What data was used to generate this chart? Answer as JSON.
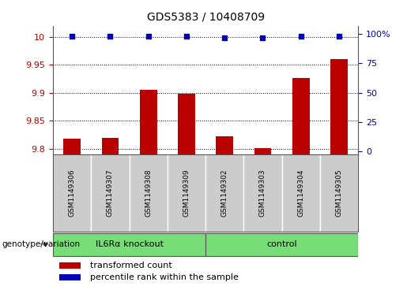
{
  "title": "GDS5383 / 10408709",
  "samples": [
    "GSM1149306",
    "GSM1149307",
    "GSM1149308",
    "GSM1149309",
    "GSM1149302",
    "GSM1149303",
    "GSM1149304",
    "GSM1149305"
  ],
  "transformed_counts": [
    9.818,
    9.82,
    9.905,
    9.898,
    9.822,
    9.801,
    9.926,
    9.96
  ],
  "percentile_ranks": [
    98,
    98,
    98,
    98,
    97,
    97,
    98,
    98
  ],
  "ylim_left": [
    9.79,
    10.02
  ],
  "ylim_right": [
    -2.5,
    107
  ],
  "yticks_left": [
    9.8,
    9.85,
    9.9,
    9.95,
    10.0
  ],
  "yticks_right": [
    0,
    25,
    50,
    75,
    100
  ],
  "groups": [
    {
      "label": "IL6Rα knockout",
      "indices": [
        0,
        1,
        2,
        3
      ],
      "color": "#77DD77"
    },
    {
      "label": "control",
      "indices": [
        4,
        5,
        6,
        7
      ],
      "color": "#77DD77"
    }
  ],
  "bar_color": "#BB0000",
  "dot_color": "#0000BB",
  "bar_width": 0.45,
  "background_color": "#ffffff",
  "label_area_color": "#cccccc",
  "group_area_color": "#77DD77",
  "grid_color": "#000000",
  "baseline": 9.79,
  "title_fontsize": 10,
  "tick_fontsize": 8,
  "legend_fontsize": 8,
  "sample_fontsize": 6.5,
  "group_fontsize": 8
}
